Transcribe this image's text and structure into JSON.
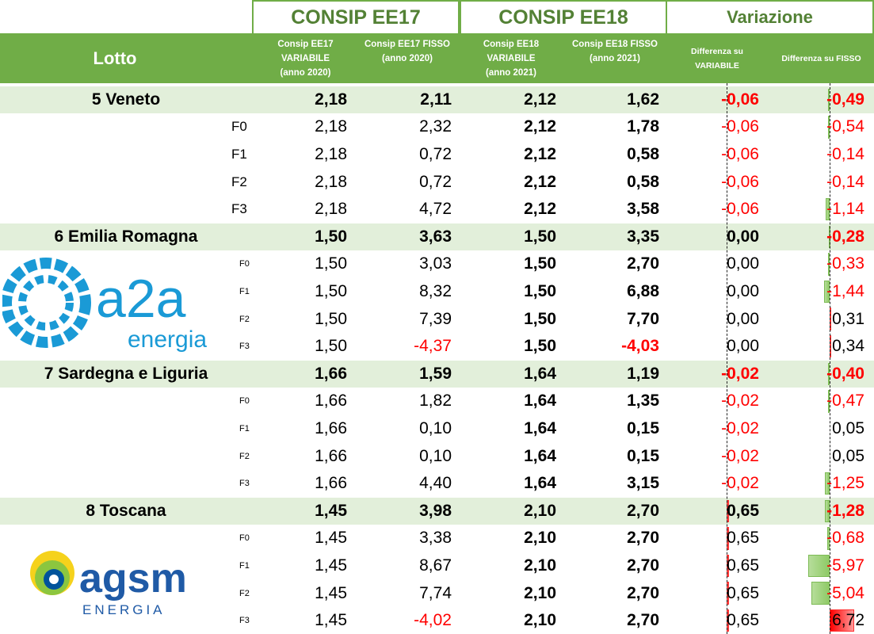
{
  "top_headers": {
    "ee17": "CONSIP EE17",
    "ee18": "CONSIP EE18",
    "variazione": "Variazione"
  },
  "columns": {
    "lotto": "Lotto",
    "ee17_var": "Consip EE17 VARIABILE (anno 2020)",
    "ee17_fisso": "Consip EE17 FISSO (anno 2020)",
    "ee18_var": "Consip EE18 VARIABILE (anno 2021)",
    "ee18_fisso": "Consip EE18 FISSO (anno 2021)",
    "diff_var": "Differenza su VARIABILE",
    "diff_fisso": "Differenza su FISSO"
  },
  "colors": {
    "header_green": "#70ad47",
    "title_green": "#538135",
    "lotto_bg": "#e2efda",
    "negative": "#ff0000"
  },
  "groups": [
    {
      "lotto": "5 Veneto",
      "logo": "enel",
      "flab": "big",
      "totals": [
        "2,18",
        "2,11",
        "2,12",
        "1,62",
        "-0,06",
        "-0,49"
      ],
      "rows": [
        {
          "f": "F0",
          "v": [
            "2,18",
            "2,32",
            "2,12",
            "1,78",
            "-0,06",
            "-0,54"
          ]
        },
        {
          "f": "F1",
          "v": [
            "2,18",
            "0,72",
            "2,12",
            "0,58",
            "-0,06",
            "-0,14"
          ]
        },
        {
          "f": "F2",
          "v": [
            "2,18",
            "0,72",
            "2,12",
            "0,58",
            "-0,06",
            "-0,14"
          ]
        },
        {
          "f": "F3",
          "v": [
            "2,18",
            "4,72",
            "2,12",
            "3,58",
            "-0,06",
            "-1,14"
          ]
        }
      ]
    },
    {
      "lotto": "6 Emilia Romagna",
      "logo": "a2a",
      "logo_sub": "energia",
      "flab": "small",
      "totals": [
        "1,50",
        "3,63",
        "1,50",
        "3,35",
        "0,00",
        "-0,28"
      ],
      "rows": [
        {
          "f": "F0",
          "v": [
            "1,50",
            "3,03",
            "1,50",
            "2,70",
            "0,00",
            "-0,33"
          ]
        },
        {
          "f": "F1",
          "v": [
            "1,50",
            "8,32",
            "1,50",
            "6,88",
            "0,00",
            "-1,44"
          ]
        },
        {
          "f": "F2",
          "v": [
            "1,50",
            "7,39",
            "1,50",
            "7,70",
            "0,00",
            "0,31"
          ]
        },
        {
          "f": "F3",
          "v": [
            "1,50",
            "-4,37",
            "1,50",
            "-4,03",
            "0,00",
            "0,34"
          ]
        }
      ]
    },
    {
      "lotto": "7 Sardegna e Liguria",
      "logo": "enel",
      "flab": "small",
      "totals": [
        "1,66",
        "1,59",
        "1,64",
        "1,19",
        "-0,02",
        "-0,40"
      ],
      "rows": [
        {
          "f": "F0",
          "v": [
            "1,66",
            "1,82",
            "1,64",
            "1,35",
            "-0,02",
            "-0,47"
          ]
        },
        {
          "f": "F1",
          "v": [
            "1,66",
            "0,10",
            "1,64",
            "0,15",
            "-0,02",
            "0,05"
          ]
        },
        {
          "f": "F2",
          "v": [
            "1,66",
            "0,10",
            "1,64",
            "0,15",
            "-0,02",
            "0,05"
          ]
        },
        {
          "f": "F3",
          "v": [
            "1,66",
            "4,40",
            "1,64",
            "3,15",
            "-0,02",
            "-1,25"
          ]
        }
      ]
    },
    {
      "lotto": "8 Toscana",
      "logo": "agsm",
      "logo_sub": "ENERGIA",
      "flab": "small",
      "totals": [
        "1,45",
        "3,98",
        "2,10",
        "2,70",
        "0,65",
        "-1,28"
      ],
      "rows": [
        {
          "f": "F0",
          "v": [
            "1,45",
            "3,38",
            "2,10",
            "2,70",
            "0,65",
            "-0,68"
          ]
        },
        {
          "f": "F1",
          "v": [
            "1,45",
            "8,67",
            "2,10",
            "2,70",
            "0,65",
            "-5,97"
          ]
        },
        {
          "f": "F2",
          "v": [
            "1,45",
            "7,74",
            "2,10",
            "2,70",
            "0,65",
            "-5,04"
          ]
        },
        {
          "f": "F3",
          "v": [
            "1,45",
            "-4,02",
            "2,10",
            "2,70",
            "0,65",
            "6,72"
          ]
        }
      ]
    }
  ]
}
